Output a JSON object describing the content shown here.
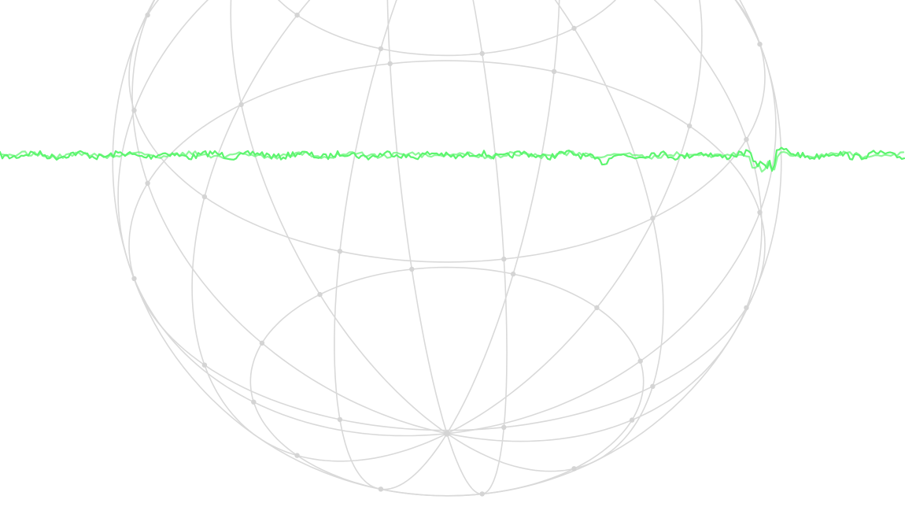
{
  "scene": {
    "background_color": "#ffffff",
    "globe": {
      "line_color": "#d9d9d9",
      "node_color": "#d4d4d4",
      "meridian_count": 12,
      "parallel_count": 4
    },
    "signal": {
      "color": "#5cf56e",
      "style": "noisy-horizontal-waveform"
    }
  }
}
